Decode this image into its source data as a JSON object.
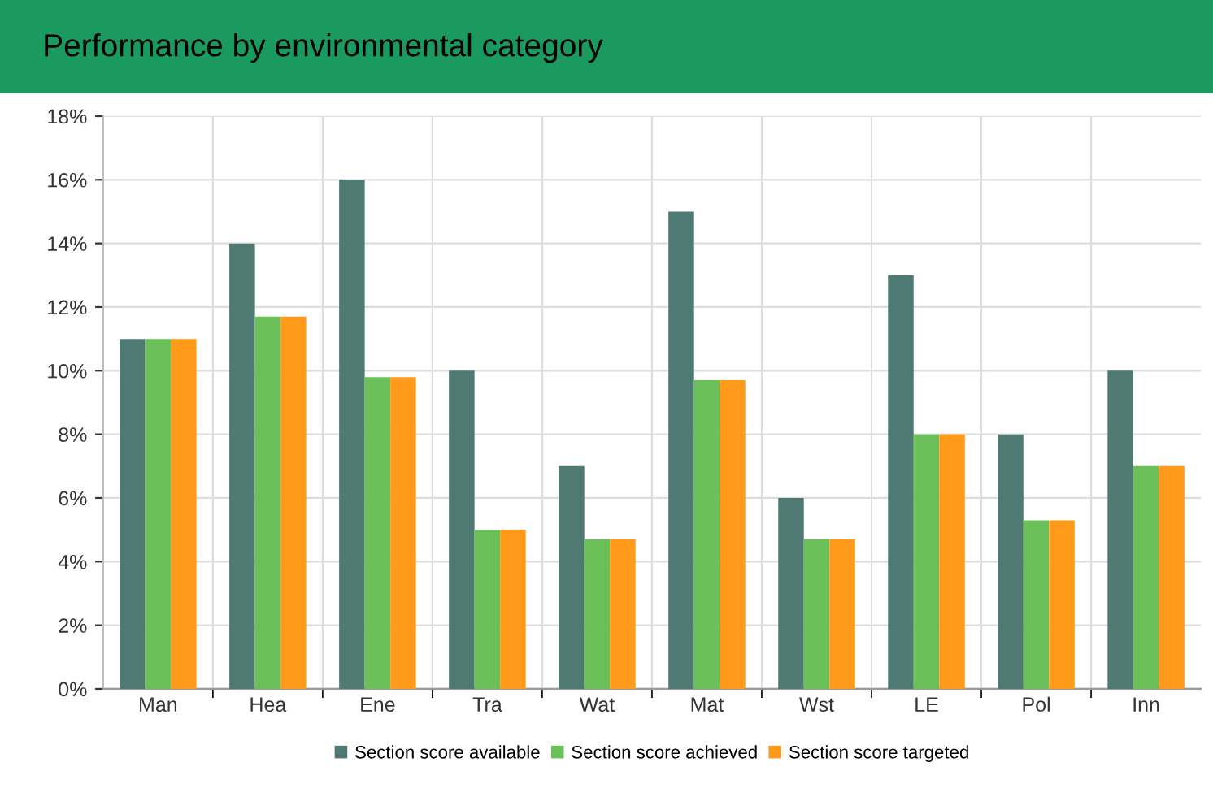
{
  "chart_data": {
    "type": "bar",
    "title": "Performance by environmental category",
    "categories": [
      "Man",
      "Hea",
      "Ene",
      "Tra",
      "Wat",
      "Mat",
      "Wst",
      "LE",
      "Pol",
      "Inn"
    ],
    "series": [
      {
        "name": "Section score available",
        "color": "#4f7a74",
        "values": [
          11,
          14,
          16,
          10,
          7,
          15,
          6,
          13,
          8,
          10
        ]
      },
      {
        "name": "Section score achieved",
        "color": "#6cc05a",
        "values": [
          11,
          11.7,
          9.8,
          5,
          4.7,
          9.7,
          4.7,
          8,
          5.3,
          7
        ]
      },
      {
        "name": "Section score targeted",
        "color": "#ff9a1a",
        "values": [
          11,
          11.7,
          9.8,
          5,
          4.7,
          9.7,
          4.7,
          8,
          5.3,
          7
        ]
      }
    ],
    "ylim": [
      0,
      18
    ],
    "yticks": [
      {
        "value": 0,
        "label": "0%"
      },
      {
        "value": 2,
        "label": "2%"
      },
      {
        "value": 4,
        "label": "4%"
      },
      {
        "value": 6,
        "label": "6%"
      },
      {
        "value": 8,
        "label": "8%"
      },
      {
        "value": 10,
        "label": "10%"
      },
      {
        "value": 12,
        "label": "12%"
      },
      {
        "value": 14,
        "label": "14%"
      },
      {
        "value": 16,
        "label": "16%"
      },
      {
        "value": 18,
        "label": "18%"
      }
    ],
    "grid": true,
    "legend": "bottom"
  }
}
